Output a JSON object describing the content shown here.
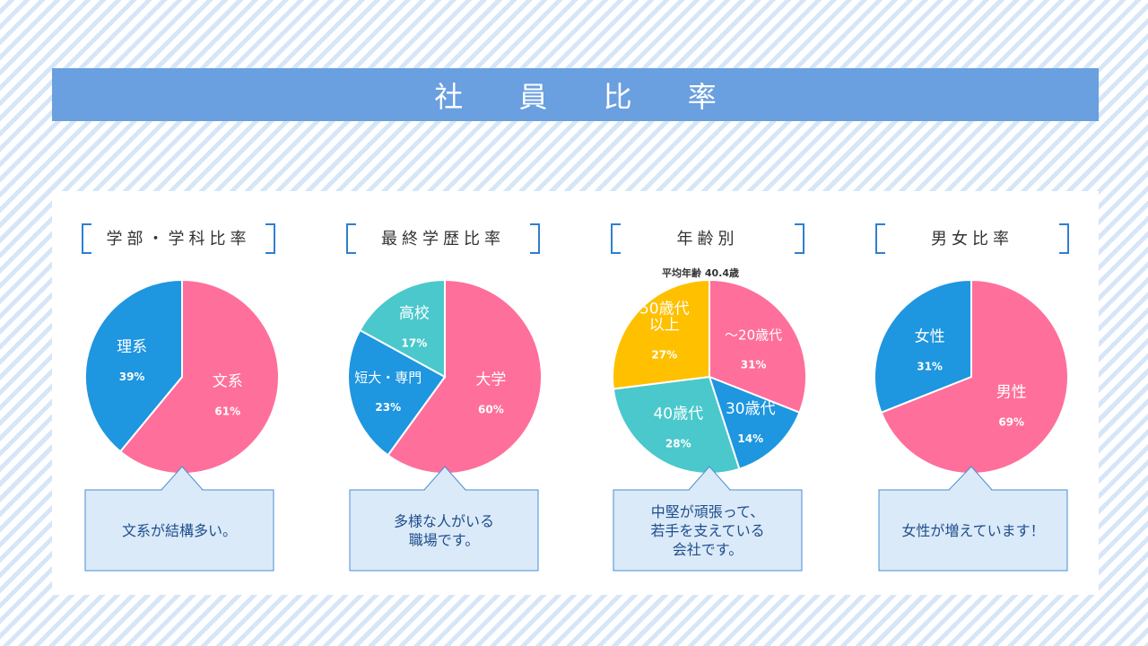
{
  "page": {
    "title": "社 員 比 率"
  },
  "colors": {
    "pink": "#ff6f9b",
    "blue": "#1e96e0",
    "teal": "#4ac8cc",
    "yellow": "#ffc000",
    "title_bar": "#6a9fe0"
  },
  "chart_data": [
    {
      "type": "pie",
      "title": "学部・学科比率",
      "slices": [
        {
          "label": "文系",
          "value": 61,
          "pct_text": "61%",
          "color": "#ff6f9b"
        },
        {
          "label": "理系",
          "value": 39,
          "pct_text": "39%",
          "color": "#1e96e0"
        }
      ],
      "callout": [
        "文系が結構多い。"
      ]
    },
    {
      "type": "pie",
      "title": "最終学歴比率",
      "slices": [
        {
          "label": "大学",
          "value": 60,
          "pct_text": "60%",
          "color": "#ff6f9b"
        },
        {
          "label": "短大・専門",
          "value": 23,
          "pct_text": "23%",
          "color": "#1e96e0"
        },
        {
          "label": "高校",
          "value": 17,
          "pct_text": "17%",
          "color": "#4ac8cc"
        }
      ],
      "callout": [
        "多様な人がいる",
        "職場です。"
      ]
    },
    {
      "type": "pie",
      "title": "年齢別",
      "subtitle": "平均年齢 40.4歳",
      "slices": [
        {
          "label": "～20歳代",
          "value": 31,
          "pct_text": "31%",
          "color": "#ff6f9b"
        },
        {
          "label": "30歳代",
          "value": 14,
          "pct_text": "14%",
          "color": "#1e96e0"
        },
        {
          "label": "40歳代",
          "value": 28,
          "pct_text": "28%",
          "color": "#4ac8cc"
        },
        {
          "label": "50歳代\n以上",
          "value": 27,
          "pct_text": "27%",
          "color": "#ffc000"
        }
      ],
      "callout": [
        "中堅が頑張って、",
        "若手を支えている",
        "会社です。"
      ]
    },
    {
      "type": "pie",
      "title": "男女比率",
      "slices": [
        {
          "label": "男性",
          "value": 69,
          "pct_text": "69%",
          "color": "#ff6f9b"
        },
        {
          "label": "女性",
          "value": 31,
          "pct_text": "31%",
          "color": "#1e96e0"
        }
      ],
      "callout": [
        "女性が増えています！"
      ]
    }
  ]
}
